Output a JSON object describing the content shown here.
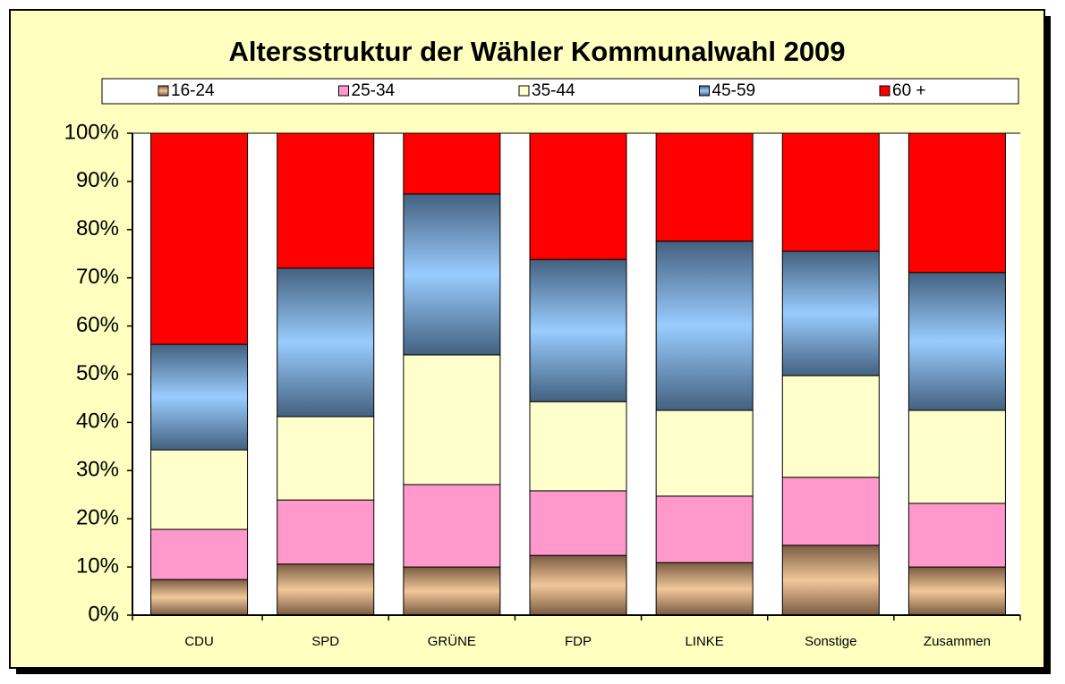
{
  "chart_data": {
    "type": "stacked_bar_100",
    "title": "Altersstruktur der Wähler Kommunalwahl 2009",
    "categories": [
      "CDU",
      "SPD",
      "GRÜNE",
      "FDP",
      "LINKE",
      "Sonstige",
      "Zusammen"
    ],
    "series": [
      {
        "name": "16-24",
        "color": "#f2c89a",
        "shade": "#7a5b42",
        "values": [
          7.4,
          10.6,
          10.0,
          12.4,
          10.9,
          14.5,
          10.0
        ]
      },
      {
        "name": "25-34",
        "color": "#ff99cc",
        "values": [
          10.4,
          13.3,
          17.1,
          13.4,
          13.8,
          14.1,
          13.2
        ]
      },
      {
        "name": "35-44",
        "color": "#ffffcc",
        "values": [
          16.5,
          17.3,
          26.9,
          18.5,
          17.8,
          21.1,
          19.3
        ]
      },
      {
        "name": "45-59",
        "color": "#99ccff",
        "shade": "#44617f",
        "values": [
          21.9,
          30.8,
          33.4,
          29.5,
          35.1,
          25.8,
          28.6
        ]
      },
      {
        "name": "60 +",
        "color": "#ff0000",
        "values": [
          43.8,
          28.0,
          12.6,
          26.2,
          22.4,
          24.5,
          28.9
        ]
      }
    ],
    "ylim": [
      0,
      100
    ],
    "yticks": [
      {
        "value": 0,
        "label": "0%"
      },
      {
        "value": 10,
        "label": "10%"
      },
      {
        "value": 20,
        "label": "20%"
      },
      {
        "value": 30,
        "label": "30%"
      },
      {
        "value": 40,
        "label": "40%"
      },
      {
        "value": 50,
        "label": "50%"
      },
      {
        "value": 60,
        "label": "60%"
      },
      {
        "value": 70,
        "label": "70%"
      },
      {
        "value": 80,
        "label": "80%"
      },
      {
        "value": 90,
        "label": "90%"
      },
      {
        "value": 100,
        "label": "100%"
      }
    ],
    "legend": "top"
  }
}
